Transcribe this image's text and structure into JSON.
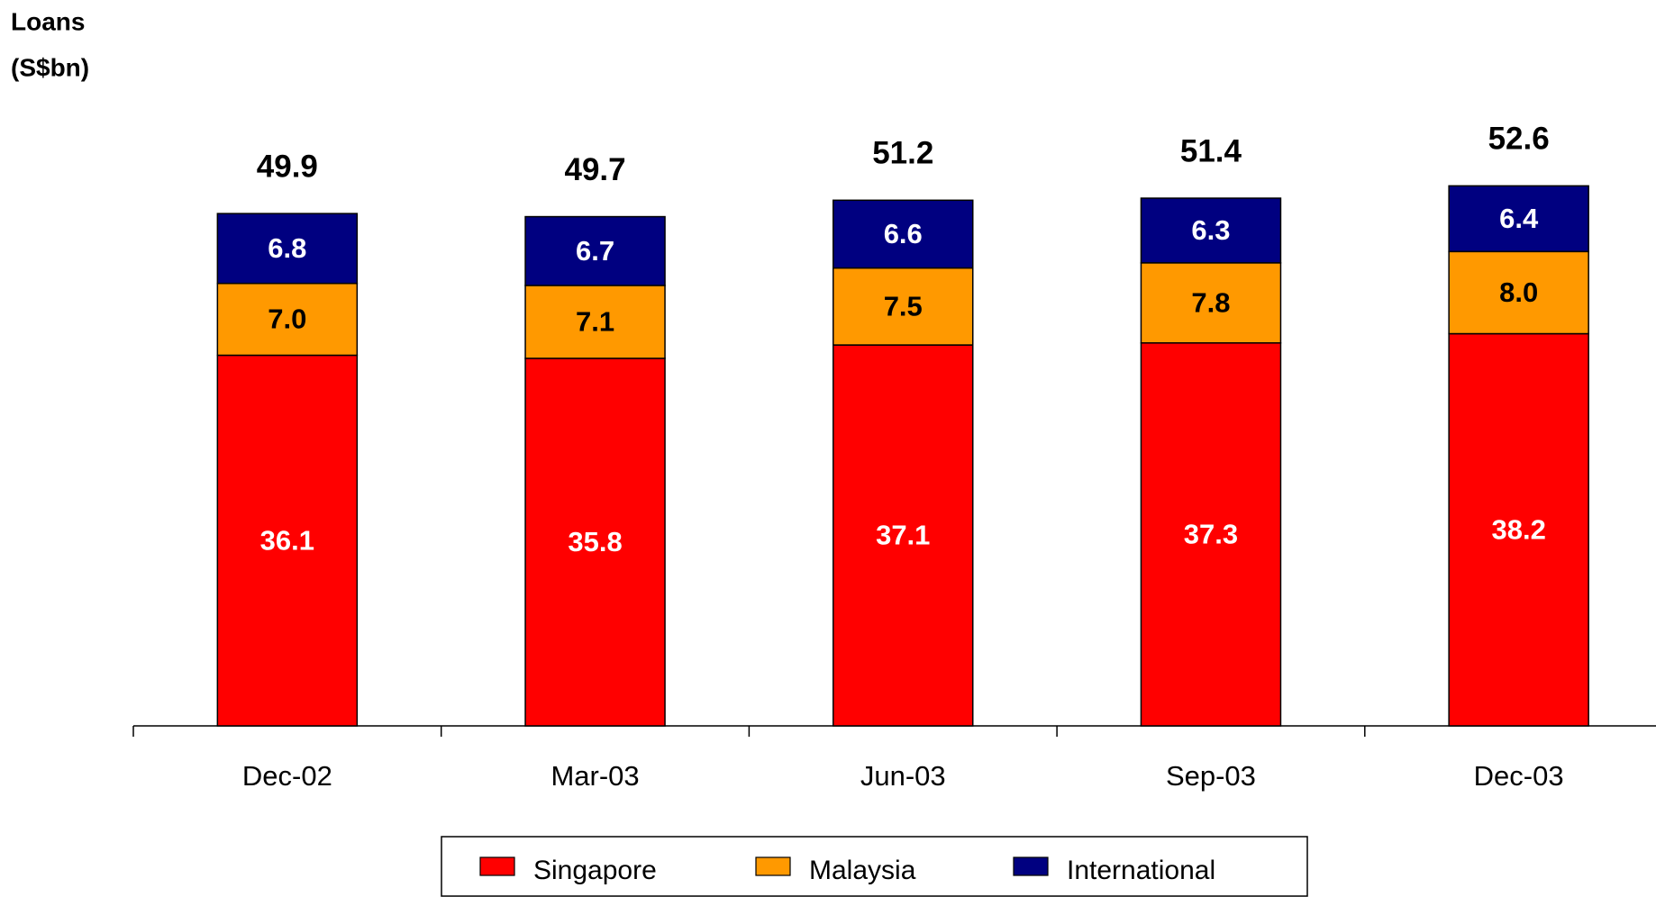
{
  "chart_data": {
    "type": "stacked_bar",
    "title": [
      "Loans",
      "(S$bn)"
    ],
    "categories": [
      "Dec-02",
      "Mar-03",
      "Jun-03",
      "Sep-03",
      "Dec-03"
    ],
    "series": [
      {
        "name": "Singapore",
        "color": "#ff0000",
        "label_color": "#ffffff",
        "values": [
          36.1,
          35.8,
          37.1,
          37.3,
          38.2
        ],
        "value_labels": [
          "36.1",
          "35.8",
          "37.1",
          "37.3",
          "38.2"
        ]
      },
      {
        "name": "Malaysia",
        "color": "#ff9900",
        "label_color": "#000000",
        "values": [
          7.0,
          7.1,
          7.5,
          7.8,
          8.0
        ],
        "value_labels": [
          "7.0",
          "7.1",
          "7.5",
          "7.8",
          "8.0"
        ]
      },
      {
        "name": "International",
        "color": "#000080",
        "label_color": "#ffffff",
        "values": [
          6.8,
          6.7,
          6.6,
          6.3,
          6.4
        ],
        "value_labels": [
          "6.8",
          "6.7",
          "6.6",
          "6.3",
          "6.4"
        ]
      }
    ],
    "totals": [
      49.9,
      49.7,
      51.2,
      51.4,
      52.6
    ],
    "ylim": [
      0,
      60
    ],
    "legend": "bottom"
  }
}
